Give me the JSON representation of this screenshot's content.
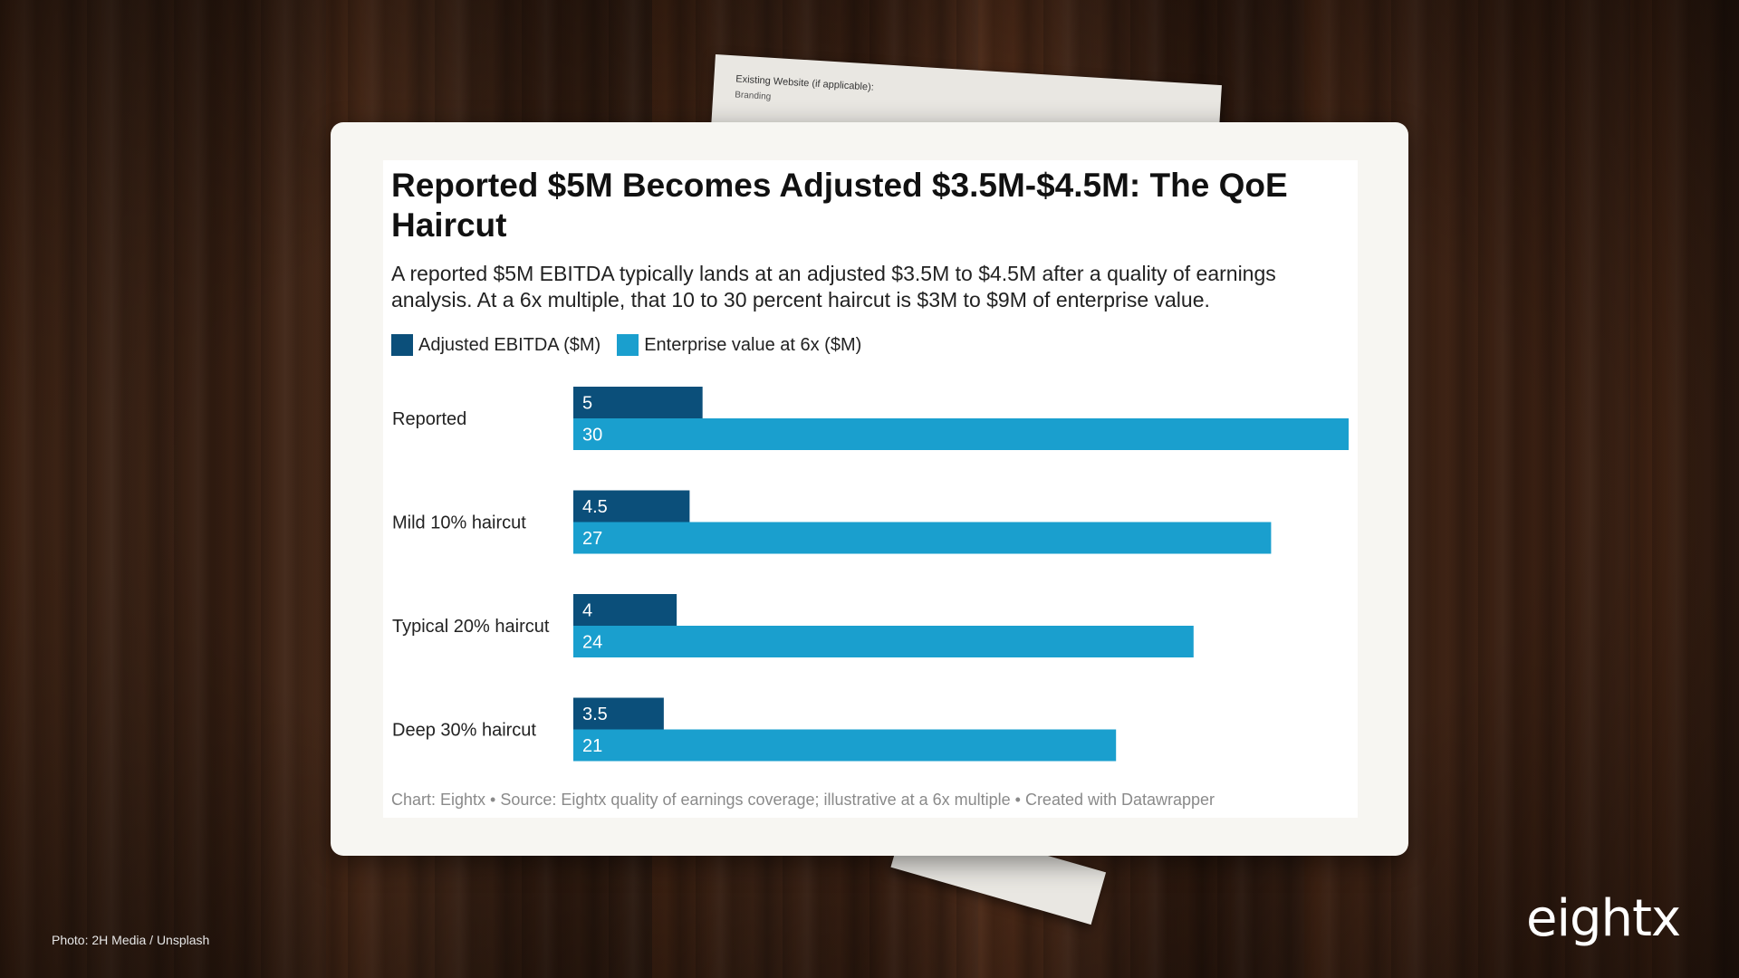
{
  "background_paper": {
    "line1": "Existing Website (if applicable):",
    "line2": "Branding"
  },
  "card": {
    "title": "Reported $5M Becomes Adjusted $3.5M-$4.5M: The QoE Haircut",
    "subtitle": "A reported $5M EBITDA typically lands at an adjusted $3.5M to $4.5M after a quality of earnings analysis. At a 6x multiple, that 10 to 30 percent haircut is $3M to $9M of enterprise value.",
    "footer": "Chart: Eightx • Source: Eightx quality of earnings coverage; illustrative at a 6x multiple • Created with Datawrapper"
  },
  "chart_data": {
    "type": "bar",
    "orientation": "horizontal",
    "categories": [
      "Reported",
      "Mild 10% haircut",
      "Typical 20% haircut",
      "Deep 30% haircut"
    ],
    "series": [
      {
        "name": "Adjusted EBITDA ($M)",
        "color": "#0b4f7a",
        "values": [
          5,
          4.5,
          4,
          3.5
        ]
      },
      {
        "name": "Enterprise value at 6x ($M)",
        "color": "#1a9fce",
        "values": [
          30,
          27,
          24,
          21
        ]
      }
    ],
    "xlim": [
      0,
      30
    ],
    "grid": false,
    "legend_position": "top-left"
  },
  "photo_credit": "Photo: 2H Media / Unsplash",
  "logo_text": "eightx"
}
